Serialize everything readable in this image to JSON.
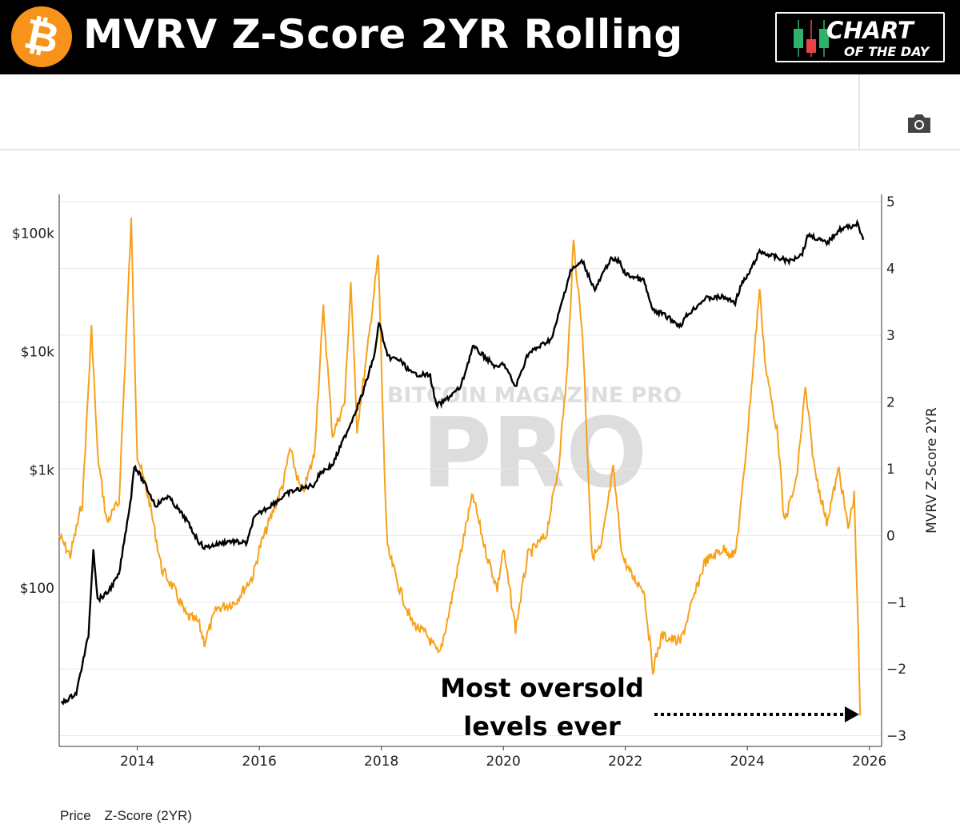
{
  "header": {
    "title": "MVRV Z-Score 2YR Rolling",
    "logo": "bitcoin-logo",
    "badge_line1": "CHART",
    "badge_line2": "OF THE DAY"
  },
  "toolbar": {
    "camera_icon": "camera-icon"
  },
  "watermark": "BITCOIN MAGAZINE PRO",
  "annotation": {
    "line1": "Most oversold",
    "line2": "levels ever"
  },
  "legend": {
    "price": "Price",
    "zscore": "Z-Score (2YR)"
  },
  "chart_data": {
    "type": "line",
    "x_ticks": [
      "2014",
      "2016",
      "2018",
      "2020",
      "2022",
      "2024",
      "2026"
    ],
    "xlim": [
      2012.72,
      2026.2
    ],
    "left_axis": {
      "scale": "log",
      "ticks": [
        "$100",
        "$1k",
        "$10k",
        "$100k"
      ],
      "tick_values": [
        100,
        1000,
        10000,
        100000
      ],
      "range": [
        4.6,
        213000
      ]
    },
    "right_axis": {
      "label": "MVRV Z-Score 2YR",
      "ticks": [
        "−3",
        "−2",
        "−1",
        "0",
        "1",
        "2",
        "3",
        "4",
        "5"
      ],
      "tick_values": [
        -3,
        -2,
        -1,
        0,
        1,
        2,
        3,
        4,
        5
      ],
      "range": [
        -3.16,
        5.11
      ]
    },
    "grid": true,
    "series": [
      {
        "name": "Price",
        "axis": "left",
        "color": "#000000",
        "points": [
          [
            2012.75,
            10.5
          ],
          [
            2013.0,
            13
          ],
          [
            2013.2,
            40
          ],
          [
            2013.28,
            220
          ],
          [
            2013.35,
            80
          ],
          [
            2013.5,
            90
          ],
          [
            2013.7,
            130
          ],
          [
            2013.9,
            600
          ],
          [
            2013.95,
            1100
          ],
          [
            2014.1,
            800
          ],
          [
            2014.3,
            500
          ],
          [
            2014.5,
            600
          ],
          [
            2014.8,
            380
          ],
          [
            2015.0,
            250
          ],
          [
            2015.1,
            220
          ],
          [
            2015.5,
            250
          ],
          [
            2015.8,
            240
          ],
          [
            2015.9,
            380
          ],
          [
            2016.0,
            430
          ],
          [
            2016.5,
            650
          ],
          [
            2016.9,
            750
          ],
          [
            2017.0,
            950
          ],
          [
            2017.2,
            1100
          ],
          [
            2017.5,
            2500
          ],
          [
            2017.7,
            4500
          ],
          [
            2017.9,
            10000
          ],
          [
            2017.96,
            18000
          ],
          [
            2018.1,
            9000
          ],
          [
            2018.3,
            8500
          ],
          [
            2018.5,
            6500
          ],
          [
            2018.8,
            6300
          ],
          [
            2018.9,
            3500
          ],
          [
            2019.0,
            3700
          ],
          [
            2019.3,
            5000
          ],
          [
            2019.5,
            11000
          ],
          [
            2019.7,
            9000
          ],
          [
            2019.9,
            7200
          ],
          [
            2020.0,
            8000
          ],
          [
            2020.2,
            5000
          ],
          [
            2020.4,
            9500
          ],
          [
            2020.8,
            13000
          ],
          [
            2020.95,
            25000
          ],
          [
            2021.1,
            48000
          ],
          [
            2021.3,
            58000
          ],
          [
            2021.5,
            33000
          ],
          [
            2021.75,
            60000
          ],
          [
            2021.9,
            58000
          ],
          [
            2022.0,
            45000
          ],
          [
            2022.3,
            40000
          ],
          [
            2022.45,
            22000
          ],
          [
            2022.6,
            21000
          ],
          [
            2022.9,
            16500
          ],
          [
            2023.0,
            20000
          ],
          [
            2023.3,
            28000
          ],
          [
            2023.6,
            29000
          ],
          [
            2023.8,
            26000
          ],
          [
            2023.9,
            37000
          ],
          [
            2024.0,
            43000
          ],
          [
            2024.2,
            70000
          ],
          [
            2024.5,
            62000
          ],
          [
            2024.7,
            58000
          ],
          [
            2024.9,
            68000
          ],
          [
            2025.0,
            98000
          ],
          [
            2025.3,
            82000
          ],
          [
            2025.5,
            107000
          ],
          [
            2025.7,
            115000
          ],
          [
            2025.8,
            120000
          ],
          [
            2025.9,
            88000
          ]
        ]
      },
      {
        "name": "Z-Score (2YR)",
        "axis": "right",
        "color": "#f7a11a",
        "points": [
          [
            2012.72,
            0
          ],
          [
            2012.9,
            -0.3
          ],
          [
            2013.1,
            0.5
          ],
          [
            2013.25,
            3.1
          ],
          [
            2013.35,
            1.2
          ],
          [
            2013.5,
            0.2
          ],
          [
            2013.7,
            0.5
          ],
          [
            2013.9,
            4.7
          ],
          [
            2014.0,
            1.2
          ],
          [
            2014.2,
            0.5
          ],
          [
            2014.4,
            -0.5
          ],
          [
            2014.6,
            -0.8
          ],
          [
            2014.8,
            -1.2
          ],
          [
            2015.0,
            -1.3
          ],
          [
            2015.1,
            -1.6
          ],
          [
            2015.3,
            -1.1
          ],
          [
            2015.6,
            -1.0
          ],
          [
            2015.9,
            -0.6
          ],
          [
            2016.0,
            -0.2
          ],
          [
            2016.4,
            0.8
          ],
          [
            2016.5,
            1.3
          ],
          [
            2016.7,
            0.6
          ],
          [
            2016.9,
            1.2
          ],
          [
            2017.05,
            3.4
          ],
          [
            2017.2,
            1.5
          ],
          [
            2017.4,
            2.0
          ],
          [
            2017.5,
            3.8
          ],
          [
            2017.6,
            1.6
          ],
          [
            2017.75,
            2.6
          ],
          [
            2017.95,
            4.2
          ],
          [
            2018.05,
            1.0
          ],
          [
            2018.1,
            -0.2
          ],
          [
            2018.3,
            -0.8
          ],
          [
            2018.5,
            -1.3
          ],
          [
            2018.75,
            -1.5
          ],
          [
            2018.95,
            -1.8
          ],
          [
            2019.1,
            -1.2
          ],
          [
            2019.4,
            0.2
          ],
          [
            2019.5,
            0.6
          ],
          [
            2019.7,
            -0.2
          ],
          [
            2019.9,
            -0.8
          ],
          [
            2020.0,
            -0.2
          ],
          [
            2020.2,
            -1.4
          ],
          [
            2020.4,
            -0.3
          ],
          [
            2020.7,
            0.0
          ],
          [
            2020.9,
            1.0
          ],
          [
            2021.05,
            2.5
          ],
          [
            2021.15,
            4.4
          ],
          [
            2021.3,
            3.0
          ],
          [
            2021.45,
            -0.3
          ],
          [
            2021.6,
            -0.2
          ],
          [
            2021.8,
            1.0
          ],
          [
            2021.95,
            -0.3
          ],
          [
            2022.1,
            -0.6
          ],
          [
            2022.3,
            -0.8
          ],
          [
            2022.45,
            -2.0
          ],
          [
            2022.6,
            -1.5
          ],
          [
            2022.9,
            -1.6
          ],
          [
            2023.1,
            -1.0
          ],
          [
            2023.3,
            -0.4
          ],
          [
            2023.6,
            -0.2
          ],
          [
            2023.8,
            -0.3
          ],
          [
            2023.9,
            0.5
          ],
          [
            2024.0,
            1.5
          ],
          [
            2024.2,
            3.7
          ],
          [
            2024.3,
            2.5
          ],
          [
            2024.5,
            1.5
          ],
          [
            2024.6,
            0.2
          ],
          [
            2024.8,
            0.8
          ],
          [
            2024.95,
            2.2
          ],
          [
            2025.1,
            1.0
          ],
          [
            2025.3,
            0.2
          ],
          [
            2025.5,
            1.0
          ],
          [
            2025.65,
            0.1
          ],
          [
            2025.75,
            0.6
          ],
          [
            2025.8,
            -0.9
          ],
          [
            2025.85,
            -2.7
          ]
        ]
      }
    ]
  }
}
